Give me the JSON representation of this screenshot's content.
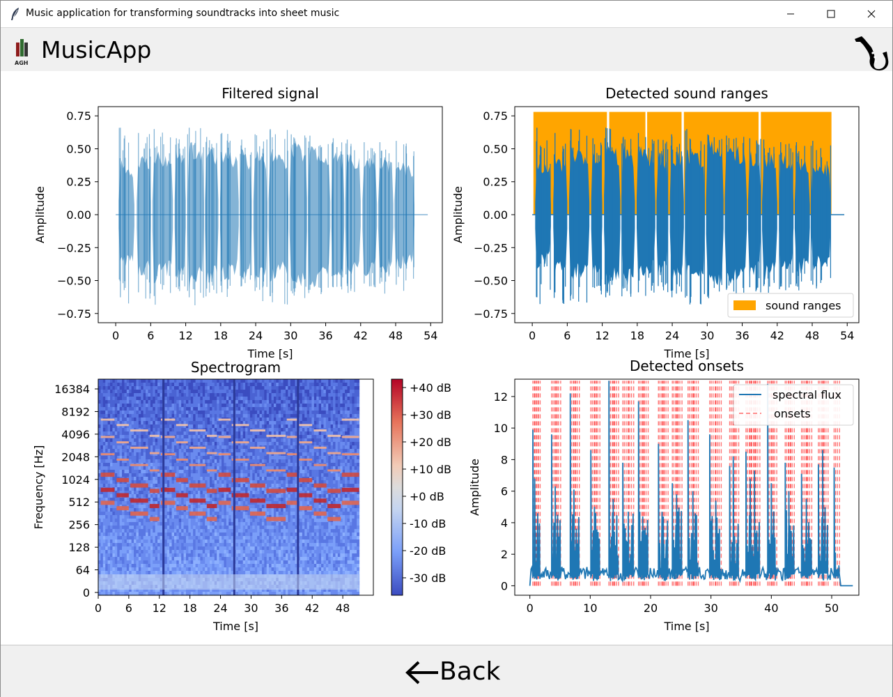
{
  "window": {
    "title": "Music application for transforming soundtracks into sheet music"
  },
  "header": {
    "brand": "MusicApp",
    "logo_text": "AGH",
    "logo_icon": "agh-logo-icon",
    "mascot_icon": "saxophone-icon"
  },
  "footer": {
    "back_label": "Back"
  },
  "colors": {
    "signal": "#1f77b4",
    "ranges": "#ffa500",
    "onsets": "#ff0000",
    "header_bg": "#f0f0f0"
  },
  "chart_data": [
    {
      "type": "line",
      "title": "Filtered signal",
      "xlabel": "Time [s]",
      "ylabel": "Amplitude",
      "xlim": [
        -3,
        56
      ],
      "ylim": [
        -0.82,
        0.82
      ],
      "xticks": [
        0,
        6,
        12,
        18,
        24,
        30,
        36,
        42,
        48,
        54
      ],
      "yticks": [
        0.75,
        0.5,
        0.25,
        0.0,
        -0.25,
        -0.5,
        -0.75
      ],
      "ytick_labels": [
        "0.75",
        "0.50",
        "0.25",
        "0.00",
        "−0.25",
        "−0.50",
        "−0.75"
      ],
      "grid": false,
      "signal_start_end": [
        0,
        53.5
      ],
      "notes": [
        {
          "start": 0.5,
          "end": 3.2,
          "env_max": 0.38,
          "env_min": -0.37,
          "peak": 0.66
        },
        {
          "start": 3.6,
          "end": 6.0,
          "env_max": 0.42,
          "env_min": -0.44,
          "peak": 0.62
        },
        {
          "start": 6.3,
          "end": 9.8,
          "env_max": 0.46,
          "env_min": -0.46,
          "peak": 0.65
        },
        {
          "start": 10.1,
          "end": 12.0,
          "env_max": 0.45,
          "env_min": -0.45,
          "peak": 0.58
        },
        {
          "start": 12.3,
          "end": 15.1,
          "env_max": 0.5,
          "env_min": -0.5,
          "peak": 0.66
        },
        {
          "start": 15.3,
          "end": 17.6,
          "env_max": 0.48,
          "env_min": -0.5,
          "peak": 0.59
        },
        {
          "start": 17.9,
          "end": 21.1,
          "env_max": 0.47,
          "env_min": -0.46,
          "peak": 0.62
        },
        {
          "start": 21.3,
          "end": 23.3,
          "env_max": 0.45,
          "env_min": -0.45,
          "peak": 0.57
        },
        {
          "start": 23.6,
          "end": 26.0,
          "env_max": 0.46,
          "env_min": -0.48,
          "peak": 0.61
        },
        {
          "start": 26.2,
          "end": 29.6,
          "env_max": 0.46,
          "env_min": -0.46,
          "peak": 0.65
        },
        {
          "start": 29.8,
          "end": 32.8,
          "env_max": 0.52,
          "env_min": -0.53,
          "peak": 0.61
        },
        {
          "start": 33.0,
          "end": 36.8,
          "env_max": 0.5,
          "env_min": -0.5,
          "peak": 0.6
        },
        {
          "start": 37.0,
          "end": 39.2,
          "env_max": 0.45,
          "env_min": -0.45,
          "peak": 0.58
        },
        {
          "start": 39.4,
          "end": 42.0,
          "env_max": 0.44,
          "env_min": -0.45,
          "peak": 0.57
        },
        {
          "start": 42.3,
          "end": 44.8,
          "env_max": 0.42,
          "env_min": -0.43,
          "peak": 0.55
        },
        {
          "start": 45.0,
          "end": 47.6,
          "env_max": 0.4,
          "env_min": -0.42,
          "peak": 0.55
        },
        {
          "start": 47.8,
          "end": 51.2,
          "env_max": 0.38,
          "env_min": -0.38,
          "peak": 0.56
        }
      ]
    },
    {
      "type": "area",
      "title": "Detected sound ranges",
      "xlabel": "Time [s]",
      "ylabel": "Amplitude",
      "xlim": [
        -3,
        56
      ],
      "ylim": [
        -0.82,
        0.82
      ],
      "xticks": [
        0,
        6,
        12,
        18,
        24,
        30,
        36,
        42,
        48,
        54
      ],
      "yticks": [
        0.75,
        0.5,
        0.25,
        0.0,
        -0.25,
        -0.5,
        -0.75
      ],
      "ytick_labels": [
        "0.75",
        "0.50",
        "0.25",
        "0.00",
        "−0.25",
        "−0.50",
        "−0.75"
      ],
      "legend": {
        "label": "sound ranges",
        "position": "lower-right"
      },
      "range_height": 0.78,
      "ranges": [
        [
          0.2,
          12.8
        ],
        [
          13.2,
          19.4
        ],
        [
          19.7,
          25.6
        ],
        [
          26.0,
          38.8
        ],
        [
          39.2,
          51.3
        ]
      ]
    },
    {
      "type": "heatmap",
      "title": "Spectrogram",
      "xlabel": "Time [s]",
      "ylabel": "Frequency [Hz]",
      "xticks": [
        0,
        6,
        12,
        18,
        24,
        30,
        36,
        42,
        48
      ],
      "yticks": [
        "16384",
        "8192",
        "4096",
        "2048",
        "1024",
        "512",
        "256",
        "128",
        "64",
        "0"
      ],
      "colorbar_ticks": [
        "+40 dB",
        "+30 dB",
        "+20 dB",
        "+10 dB",
        "+0 dB",
        "-10 dB",
        "-20 dB",
        "-30 dB"
      ],
      "colormap": "coolwarm",
      "duration": 51.2
    },
    {
      "type": "line",
      "title": "Detected onsets",
      "xlabel": "Time [s]",
      "ylabel": "Amplitude",
      "xlim": [
        -2.5,
        54.5
      ],
      "ylim": [
        -0.6,
        13.1
      ],
      "xticks": [
        0,
        10,
        20,
        30,
        40,
        50
      ],
      "yticks": [
        0,
        2,
        4,
        6,
        8,
        10,
        12
      ],
      "legend": {
        "entries": [
          "spectral flux",
          "onsets"
        ],
        "position": "upper-right"
      },
      "onset_height": 13,
      "peaks": [
        [
          0.5,
          9.9
        ],
        [
          0.8,
          6.8
        ],
        [
          3.6,
          9.6
        ],
        [
          4.2,
          6.3
        ],
        [
          6.7,
          12.2
        ],
        [
          7.3,
          6.1
        ],
        [
          10.1,
          8.6
        ],
        [
          10.7,
          5.0
        ],
        [
          13.1,
          13.0
        ],
        [
          13.8,
          5.5
        ],
        [
          15.4,
          7.8
        ],
        [
          16.3,
          4.7
        ],
        [
          18.0,
          11.7
        ],
        [
          18.7,
          4.4
        ],
        [
          21.3,
          9.0
        ],
        [
          22.0,
          3.8
        ],
        [
          23.6,
          6.5
        ],
        [
          24.3,
          5.8
        ],
        [
          26.2,
          10.5
        ],
        [
          27.0,
          6.0
        ],
        [
          29.8,
          9.6
        ],
        [
          30.8,
          5.4
        ],
        [
          33.1,
          7.6
        ],
        [
          33.7,
          8.2
        ],
        [
          35.8,
          8.5
        ],
        [
          36.5,
          6.8
        ],
        [
          37.2,
          7.3
        ],
        [
          39.4,
          12.8
        ],
        [
          40.0,
          6.5
        ],
        [
          42.3,
          7.8
        ],
        [
          42.9,
          6.0
        ],
        [
          45.0,
          7.1
        ],
        [
          45.8,
          5.5
        ],
        [
          47.8,
          7.7
        ],
        [
          48.5,
          8.6
        ],
        [
          50.4,
          7.5
        ]
      ]
    }
  ]
}
